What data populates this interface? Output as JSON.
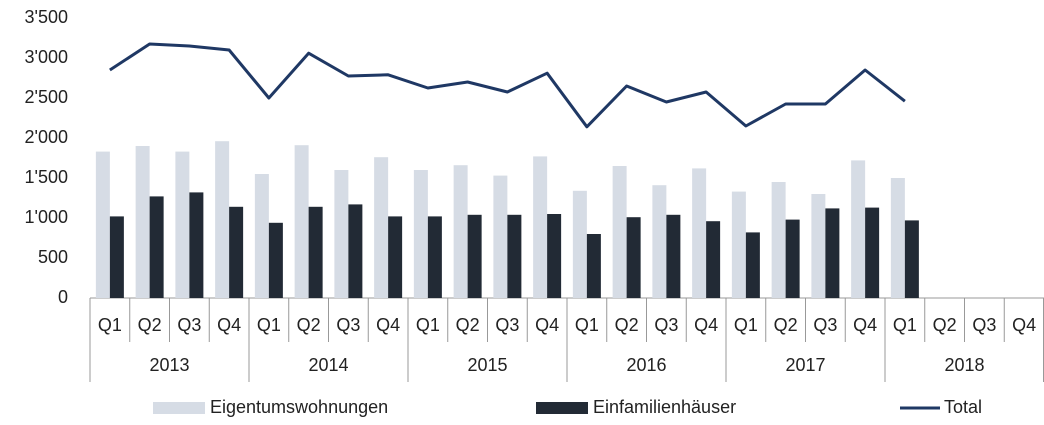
{
  "chart_data": {
    "type": "bar_line",
    "categories": [
      "Q1",
      "Q2",
      "Q3",
      "Q4",
      "Q1",
      "Q2",
      "Q3",
      "Q4",
      "Q1",
      "Q2",
      "Q3",
      "Q4",
      "Q1",
      "Q2",
      "Q3",
      "Q4",
      "Q1",
      "Q2",
      "Q3",
      "Q4",
      "Q1",
      "Q2",
      "Q3",
      "Q4"
    ],
    "x_groups": [
      "2013",
      "2014",
      "2015",
      "2016",
      "2017",
      "2018"
    ],
    "series": [
      {
        "name": "Eigentumswohnungen",
        "type": "bar",
        "color": "#d6dce5",
        "values": [
          1830,
          1900,
          1830,
          1960,
          1550,
          1910,
          1600,
          1760,
          1600,
          1660,
          1530,
          1770,
          1340,
          1650,
          1410,
          1620,
          1330,
          1450,
          1300,
          1720,
          1500,
          null,
          null,
          null
        ]
      },
      {
        "name": "Einfamilienhäuser",
        "type": "bar",
        "color": "#222a35",
        "values": [
          1020,
          1270,
          1320,
          1140,
          940,
          1140,
          1170,
          1020,
          1020,
          1040,
          1040,
          1050,
          800,
          1010,
          1040,
          960,
          820,
          980,
          1120,
          1130,
          970,
          null,
          null,
          null
        ]
      },
      {
        "name": "Total",
        "type": "line",
        "color": "#1f3864",
        "values": [
          2850,
          3175,
          3150,
          3100,
          2500,
          3060,
          2775,
          2790,
          2625,
          2700,
          2575,
          2810,
          2140,
          2650,
          2450,
          2575,
          2150,
          2425,
          2425,
          2850,
          2460,
          null,
          null,
          null
        ]
      }
    ],
    "ylim": [
      0,
      3500
    ],
    "yticks": [
      0,
      500,
      {
        "value": 1000,
        "label": "1'000"
      },
      {
        "value": 1500,
        "label": "1'500"
      },
      {
        "value": 2000,
        "label": "2'000"
      },
      {
        "value": 2500,
        "label": "2'500"
      },
      {
        "value": 3000,
        "label": "3'000"
      },
      {
        "value": 3500,
        "label": "3'500"
      }
    ],
    "legend": "bottom",
    "grid": false
  }
}
